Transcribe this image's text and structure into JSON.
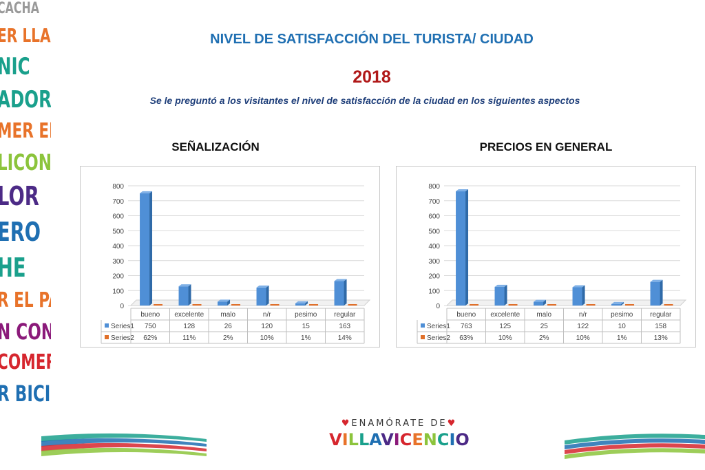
{
  "header": {
    "title": "NIVEL DE SATISFACCIÓN DEL TURISTA/ CIUDAD",
    "year": "2018",
    "subtitle": "Se le preguntó a los visitantes el nivel de satisfacción de la ciudad en los siguientes aspectos"
  },
  "side_words": [
    {
      "text": "CACHA",
      "color": "#9a9a9a"
    },
    {
      "text": "ER LLAN",
      "color": "#e8732a"
    },
    {
      "text": "NIC",
      "color": "#1aa08c"
    },
    {
      "text": "ADORE",
      "color": "#1aa08c"
    },
    {
      "text": "MER EL F",
      "color": "#e8732a"
    },
    {
      "text": "LICON",
      "color": "#8cc43c"
    },
    {
      "text": "LOR",
      "color": "#4c2a86"
    },
    {
      "text": "ERO",
      "color": "#1f6fb2"
    },
    {
      "text": "HE",
      "color": "#1aa08c"
    },
    {
      "text": "R EL PARQ",
      "color": "#e8732a"
    },
    {
      "text": "N CON",
      "color": "#8b1a7a"
    },
    {
      "text": "COMER",
      "color": "#d6262e"
    },
    {
      "text": "R BICIC",
      "color": "#1f6fb2"
    }
  ],
  "chart_data": [
    {
      "type": "bar",
      "title": "SEÑALIZACIÓN",
      "categories": [
        "bueno",
        "excelente",
        "malo",
        "n/r",
        "pesimo",
        "regular"
      ],
      "series": [
        {
          "name": "Series1",
          "values": [
            750,
            128,
            26,
            120,
            15,
            163
          ],
          "labels": [
            "750",
            "128",
            "26",
            "120",
            "15",
            "163"
          ],
          "color": "#4f8fd6"
        },
        {
          "name": "Series2",
          "values": [
            0.62,
            0.11,
            0.02,
            0.1,
            0.01,
            0.14
          ],
          "labels": [
            "62%",
            "11%",
            "2%",
            "10%",
            "1%",
            "14%"
          ],
          "color": "#e0702a"
        }
      ],
      "y_ticks": [
        "0",
        "100",
        "200",
        "300",
        "400",
        "500",
        "600",
        "700",
        "800"
      ],
      "ylim": [
        0,
        800
      ],
      "grid": true,
      "legend": "data-table"
    },
    {
      "type": "bar",
      "title": "PRECIOS EN GENERAL",
      "categories": [
        "bueno",
        "excelente",
        "malo",
        "n/r",
        "pesimo",
        "regular"
      ],
      "series": [
        {
          "name": "Series1",
          "values": [
            763,
            125,
            25,
            122,
            10,
            158
          ],
          "labels": [
            "763",
            "125",
            "25",
            "122",
            "10",
            "158"
          ],
          "color": "#4f8fd6"
        },
        {
          "name": "Series2",
          "values": [
            0.63,
            0.1,
            0.02,
            0.1,
            0.01,
            0.13
          ],
          "labels": [
            "63%",
            "10%",
            "2%",
            "10%",
            "1%",
            "13%"
          ],
          "color": "#e0702a"
        }
      ],
      "y_ticks": [
        "0",
        "100",
        "200",
        "300",
        "400",
        "500",
        "600",
        "700",
        "800"
      ],
      "ylim": [
        0,
        800
      ],
      "grid": true,
      "legend": "data-table"
    }
  ],
  "logo": {
    "top_text": "ENAMÓRATE DE",
    "main_text": "VILLAVICENCIO",
    "letter_colors": [
      "#d6262e",
      "#e8732a",
      "#8cc43c",
      "#1aa08c",
      "#1f6fb2",
      "#4c2a86",
      "#8b1a7a",
      "#d6262e",
      "#e8732a",
      "#8cc43c",
      "#1aa08c",
      "#1f6fb2",
      "#4c2a86"
    ]
  },
  "wave_colors": [
    "#1aa08c",
    "#1f6fb2",
    "#d6262e",
    "#8cc43c"
  ]
}
